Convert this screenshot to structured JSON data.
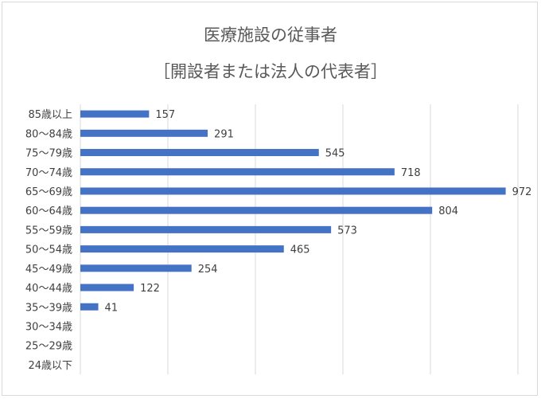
{
  "chart_data": {
    "type": "bar",
    "orientation": "horizontal",
    "title": "医療施設の従事者",
    "subtitle": "［開設者または法人の代表者］",
    "categories": [
      "85歳以上",
      "80〜84歳",
      "75〜79歳",
      "70〜74歳",
      "65〜69歳",
      "60〜64歳",
      "55〜59歳",
      "50〜54歳",
      "45〜49歳",
      "40〜44歳",
      "35〜39歳",
      "30〜34歳",
      "25〜29歳",
      "24歳以下"
    ],
    "values": [
      157,
      291,
      545,
      718,
      972,
      804,
      573,
      465,
      254,
      122,
      41,
      0,
      0,
      0
    ],
    "data_labels": [
      "157",
      "291",
      "545",
      "718",
      "972",
      "804",
      "573",
      "465",
      "254",
      "122",
      "41",
      "",
      "",
      ""
    ],
    "xlim": [
      0,
      1000
    ],
    "grid": true,
    "bar_color": "#4472c4",
    "grid_color": "#d9d9d9"
  }
}
